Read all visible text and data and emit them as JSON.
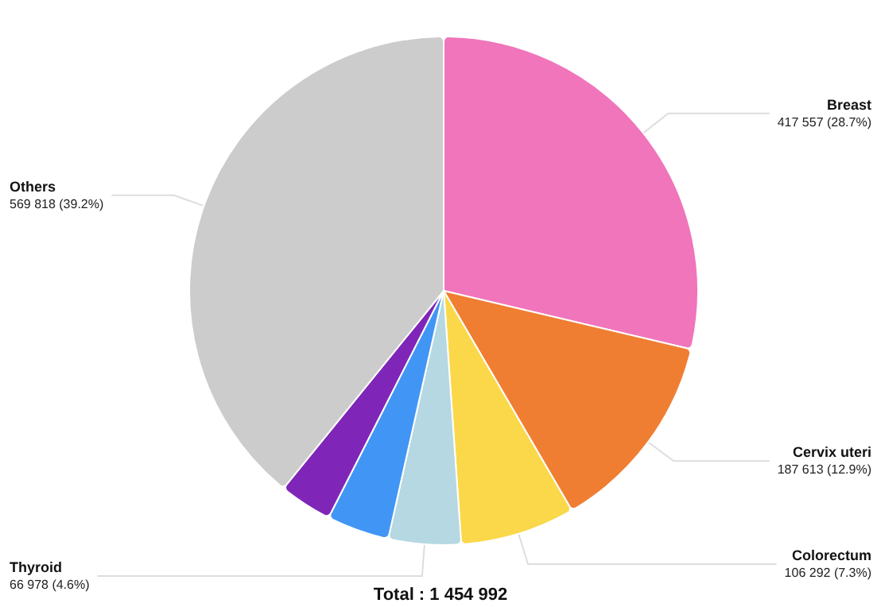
{
  "chart_data": {
    "type": "pie",
    "categories": [
      "Breast",
      "Cervix uteri",
      "Colorectum",
      "Thyroid",
      null,
      null,
      "Others"
    ],
    "values": [
      417557,
      187613,
      106292,
      66978,
      57734,
      49000,
      569818
    ],
    "value_labels": [
      "417 557 (28.7%)",
      "187 613 (12.9%)",
      "106 292 (7.3%)",
      "66 978 (4.6%)",
      null,
      null,
      "569 818 (39.2%)"
    ],
    "colors": [
      "#f075bb",
      "#f07e32",
      "#fbd84a",
      "#b5d8e2",
      "#4196f5",
      "#7f26b8",
      "#cccccc"
    ],
    "annotations": [
      "Total : 1 454 992"
    ],
    "legend": false
  }
}
